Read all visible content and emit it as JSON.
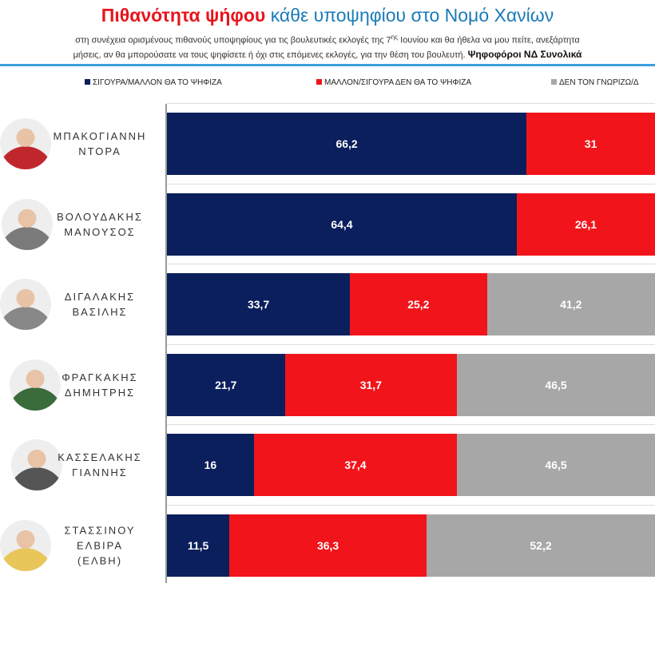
{
  "header": {
    "title_red": "Πιθανότητα ψήφου",
    "title_blue": "κάθε υποψηφίου στο Νομό Χανίων",
    "line1_a": "στη συνέχεια ορισμένους πιθανούς υποψηφίους για τις βουλευτικές εκλογές της 7",
    "line1_sup": "ης",
    "line1_b": " Ιουνίου και θα ήθελα να μου πείτε, ανεξάρτητα",
    "line2": "μήσεις, αν θα μπορούσατε να τους ψηφίσετε ή όχι στις επόμενες εκλογές, για την θέση του βουλευτή. ",
    "line2_bold": "Ψηφοφόροι ΝΔ Συνολικά"
  },
  "colors": {
    "yes": "#0b1f5c",
    "no": "#f2141b",
    "unknown": "#a7a7a7",
    "title_red": "#e8141c",
    "title_blue": "#1a7bb8"
  },
  "chart_data": {
    "type": "bar",
    "orientation": "horizontal-stacked",
    "xlim": [
      0,
      100
    ],
    "legend_position": "top",
    "series": [
      {
        "name": "ΣΙΓΟΥΡΑ/ΜΑΛΛΟΝ ΘΑ ΤΟ ΨΗΦΙΖΑ",
        "values": [
          66.2,
          64.4,
          33.7,
          21.7,
          16,
          11.5
        ]
      },
      {
        "name": "ΜΑΛΛΟΝ/ΣΙΓΟΥΡΑ ΔΕΝ ΘΑ ΤΟ ΨΗΦΙΖΑ",
        "values": [
          31,
          26.1,
          25.2,
          31.7,
          37.4,
          36.3
        ]
      },
      {
        "name": "ΔΕΝ ΤΟΝ ΓΝΩΡΙΖΩ/Δ",
        "values": [
          null,
          null,
          41.2,
          46.5,
          46.5,
          52.2
        ]
      }
    ],
    "categories": [
      {
        "line1": "ΜΠΑΚΟΓΙΑΝΝΗ",
        "line2": "ΝΤΟΡΑ",
        "labels": [
          "66,2",
          "31",
          ""
        ]
      },
      {
        "line1": "ΒΟΛΟΥΔΑΚΗΣ",
        "line2": "ΜΑΝΟΥΣΟΣ",
        "labels": [
          "64,4",
          "26,1",
          ""
        ]
      },
      {
        "line1": "ΔΙΓΑΛΑΚΗΣ ΒΑΣΙΛΗΣ",
        "line2": "",
        "labels": [
          "33,7",
          "25,2",
          "41,2"
        ]
      },
      {
        "line1": "ΦΡΑΓΚΑΚΗΣ",
        "line2": "ΔΗΜΗΤΡΗΣ",
        "labels": [
          "21,7",
          "31,7",
          "46,5"
        ]
      },
      {
        "line1": "ΚΑΣΣΕΛΑΚΗΣ",
        "line2": "ΓΙΑΝΝΗΣ",
        "labels": [
          "16",
          "37,4",
          "46,5"
        ]
      },
      {
        "line1": "ΣΤΑΣΣΙΝΟΥ ΕΛΒΙΡΑ",
        "line2": "(ΕΛΒΗ)",
        "labels": [
          "11,5",
          "36,3",
          "52,2"
        ]
      }
    ]
  }
}
